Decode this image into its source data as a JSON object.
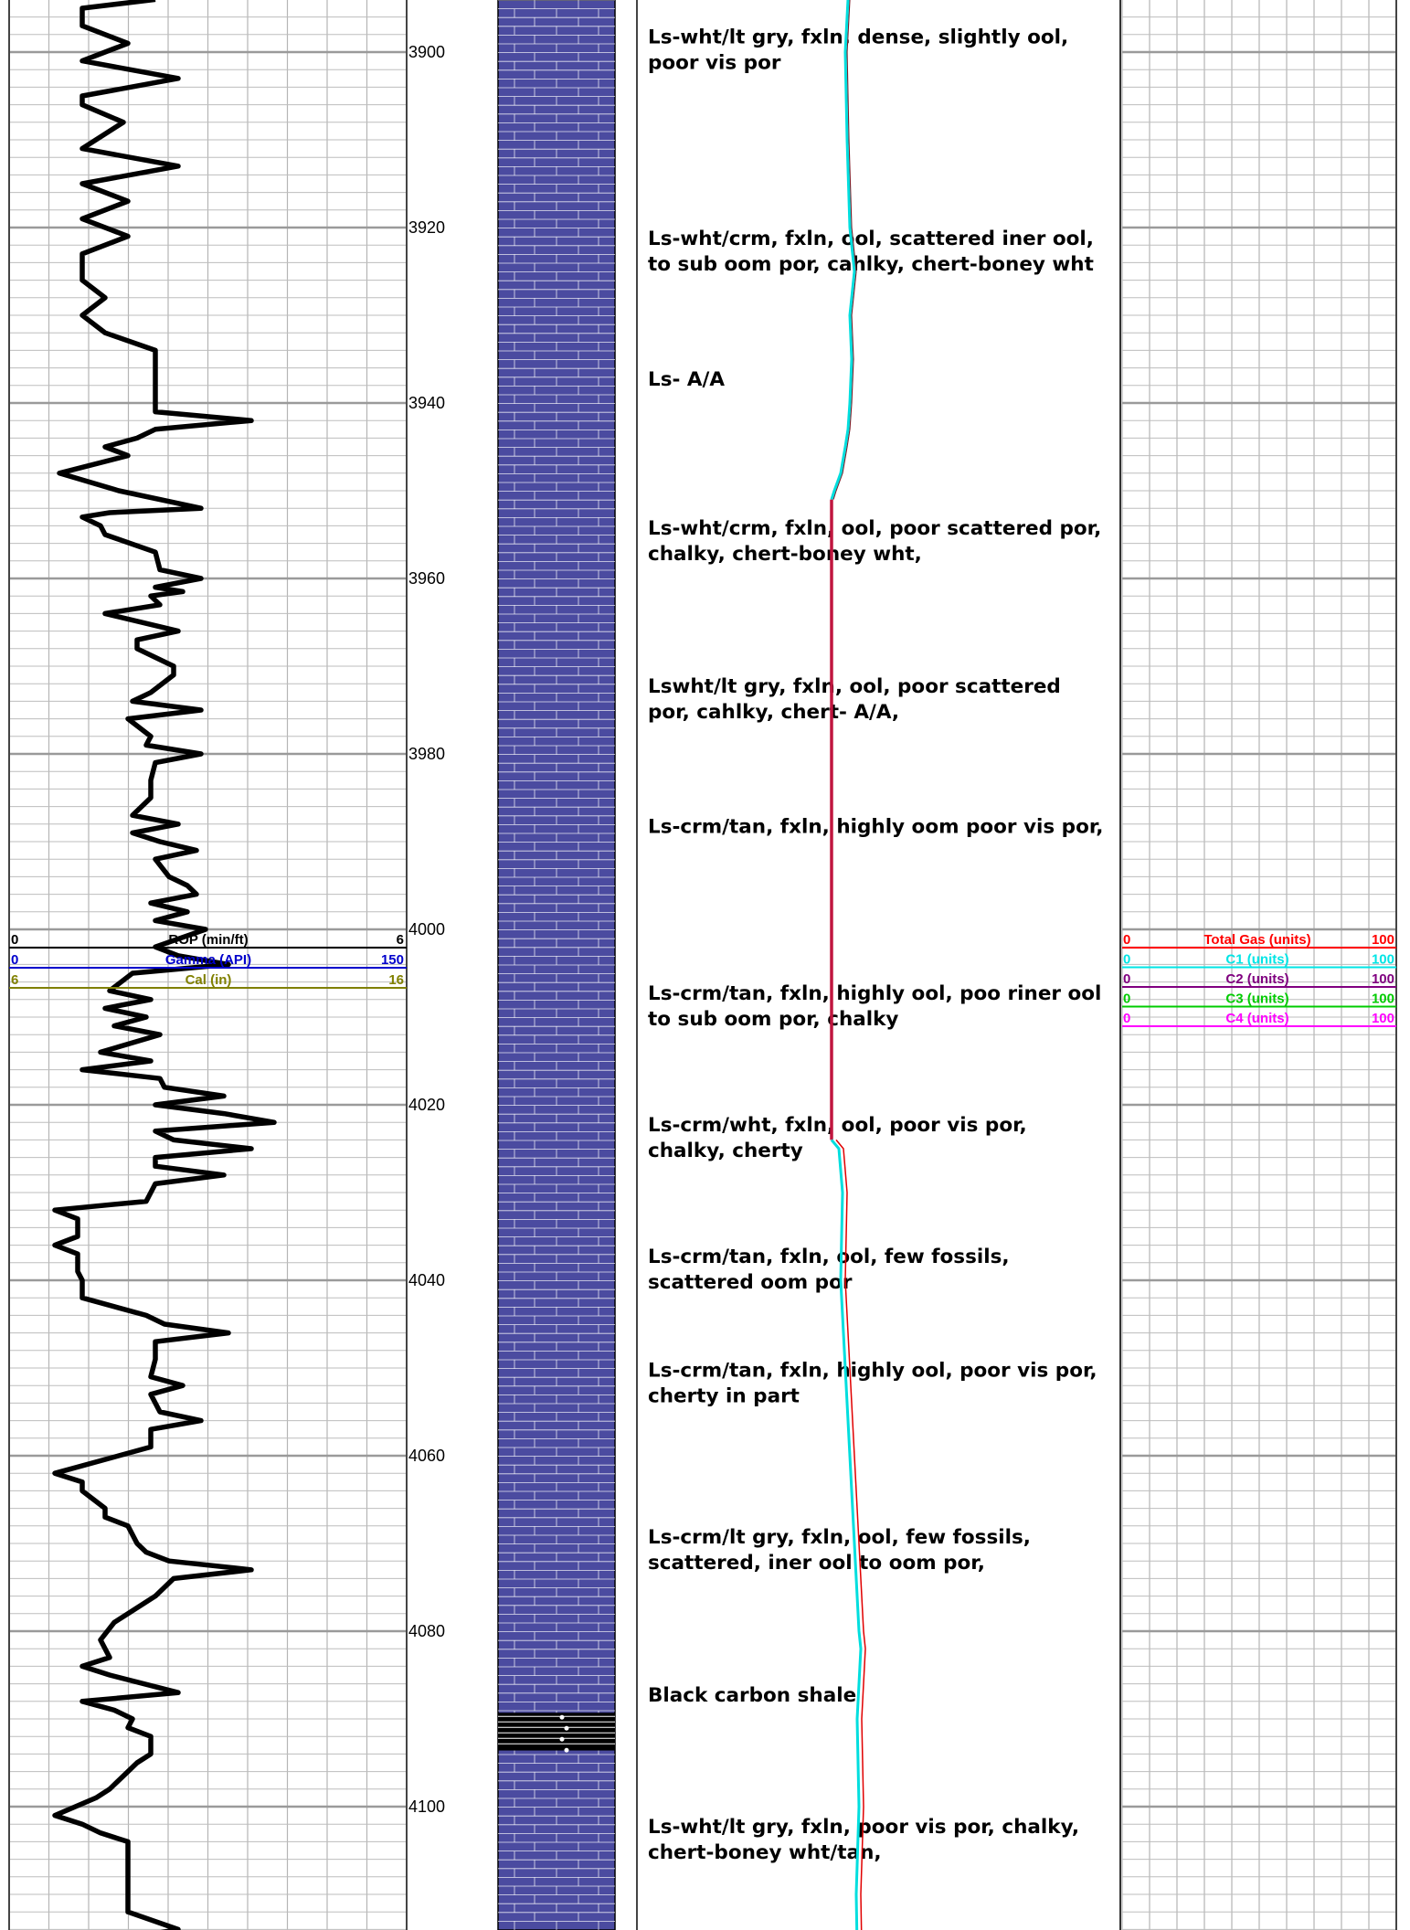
{
  "depths": [
    "3900",
    "3920",
    "3940",
    "3960",
    "3980",
    "4000",
    "4020",
    "4040",
    "4060",
    "4080",
    "4100"
  ],
  "left_track_header": [
    {
      "min": "0",
      "label": "ROP (min/ft)",
      "max": "6",
      "color": "#000000"
    },
    {
      "min": "0",
      "label": "Gamma (API)",
      "max": "150",
      "color": "#0000cc"
    },
    {
      "min": "6",
      "label": "Cal (in)",
      "max": "16",
      "color": "#808000"
    }
  ],
  "right_track_header": [
    {
      "min": "0",
      "label": "Total Gas (units)",
      "max": "100",
      "color": "#ff0000"
    },
    {
      "min": "0",
      "label": "C1 (units)",
      "max": "100",
      "color": "#00e5e5"
    },
    {
      "min": "0",
      "label": "C2 (units)",
      "max": "100",
      "color": "#800080"
    },
    {
      "min": "0",
      "label": "C3 (units)",
      "max": "100",
      "color": "#00cc00"
    },
    {
      "min": "0",
      "label": "C4 (units)",
      "max": "100",
      "color": "#ff00ff"
    }
  ],
  "descriptions": [
    {
      "depth": 3899,
      "lines": [
        "Ls-wht/lt gry, fxln, dense, slightly ool,",
        "poor vis por"
      ]
    },
    {
      "depth": 3922,
      "lines": [
        "Ls-wht/crm, fxln, ool, scattered iner ool,",
        "to sub oom por, cahlky, chert-boney wht"
      ]
    },
    {
      "depth": 3938,
      "lines": [
        "Ls- A/A"
      ]
    },
    {
      "depth": 3955,
      "lines": [
        "Ls-wht/crm, fxln, ool, poor scattered por,",
        "chalky, chert-boney wht,"
      ]
    },
    {
      "depth": 3973,
      "lines": [
        "Lswht/lt gry, fxln, ool, poor scattered",
        "por, cahlky, chert- A/A,"
      ]
    },
    {
      "depth": 3989,
      "lines": [
        "Ls-crm/tan, fxln, highly oom poor vis por,"
      ]
    },
    {
      "depth": 4008,
      "lines": [
        "Ls-crm/tan, fxln, highly ool, poo riner ool",
        "to sub oom por, chalky"
      ]
    },
    {
      "depth": 4023,
      "lines": [
        "Ls-crm/wht, fxln, ool, poor vis por,",
        "chalky, cherty"
      ]
    },
    {
      "depth": 4038,
      "lines": [
        "Ls-crm/tan, fxln, ool, few fossils,",
        "scattered oom por"
      ]
    },
    {
      "depth": 4051,
      "lines": [
        "Ls-crm/tan, fxln, highly ool, poor vis por,",
        "cherty in part"
      ]
    },
    {
      "depth": 4070,
      "lines": [
        "Ls-crm/lt gry, fxln, ool, few fossils,",
        "scattered, iner ool to oom por,"
      ]
    },
    {
      "depth": 4088,
      "lines": [
        "Black carbon shale"
      ]
    },
    {
      "depth": 4103,
      "lines": [
        "Ls-wht/lt gry, fxln, poor vis por, chalky,",
        "chert-boney wht/tan,"
      ]
    }
  ],
  "lithology": {
    "limestone_color": "#4b4ba0",
    "shale_color": "#000000",
    "shale_top": 4089.3,
    "shale_base": 4093.6
  },
  "curves": {
    "rop": [
      [
        3894,
        170
      ],
      [
        3895,
        90
      ],
      [
        3897,
        90
      ],
      [
        3899,
        140
      ],
      [
        3901,
        90
      ],
      [
        3903,
        195
      ],
      [
        3905,
        90
      ],
      [
        3906,
        90
      ],
      [
        3908,
        135
      ],
      [
        3911,
        90
      ],
      [
        3913,
        195
      ],
      [
        3915,
        90
      ],
      [
        3917,
        140
      ],
      [
        3919,
        90
      ],
      [
        3921,
        140
      ],
      [
        3923,
        90
      ],
      [
        3926,
        90
      ],
      [
        3928,
        115
      ],
      [
        3930,
        90
      ],
      [
        3932,
        115
      ],
      [
        3934,
        170
      ],
      [
        3941,
        170
      ],
      [
        3942,
        275
      ],
      [
        3943,
        170
      ],
      [
        3944,
        150
      ],
      [
        3945,
        115
      ],
      [
        3946,
        140
      ],
      [
        3948,
        65
      ],
      [
        3950,
        130
      ],
      [
        3952,
        220
      ],
      [
        3952.5,
        120
      ],
      [
        3953,
        90
      ],
      [
        3954,
        110
      ],
      [
        3955,
        115
      ],
      [
        3957,
        170
      ],
      [
        3959,
        175
      ],
      [
        3960,
        220
      ],
      [
        3961,
        170
      ],
      [
        3961.5,
        200
      ],
      [
        3962,
        165
      ],
      [
        3963,
        175
      ],
      [
        3964,
        115
      ],
      [
        3966,
        195
      ],
      [
        3967,
        150
      ],
      [
        3968,
        150
      ],
      [
        3970,
        190
      ],
      [
        3971,
        190
      ],
      [
        3973,
        165
      ],
      [
        3974,
        145
      ],
      [
        3975,
        220
      ],
      [
        3976,
        140
      ],
      [
        3978,
        165
      ],
      [
        3979,
        160
      ],
      [
        3980,
        220
      ],
      [
        3981,
        170
      ],
      [
        3983,
        165
      ],
      [
        3985,
        165
      ],
      [
        3987,
        145
      ],
      [
        3988,
        195
      ],
      [
        3989,
        145
      ],
      [
        3990,
        175
      ],
      [
        3991,
        215
      ],
      [
        3992,
        170
      ],
      [
        3994,
        185
      ],
      [
        3995,
        205
      ],
      [
        3996,
        215
      ],
      [
        3997,
        165
      ],
      [
        3998,
        205
      ],
      [
        3999,
        170
      ],
      [
        4000,
        225
      ],
      [
        4002,
        170
      ],
      [
        4003,
        195
      ],
      [
        4004,
        250
      ],
      [
        4005,
        145
      ],
      [
        4007,
        120
      ],
      [
        4008,
        165
      ],
      [
        4009,
        115
      ],
      [
        4010,
        160
      ],
      [
        4011,
        125
      ],
      [
        4012,
        175
      ],
      [
        4014,
        110
      ],
      [
        4015,
        165
      ],
      [
        4016,
        90
      ],
      [
        4017,
        175
      ],
      [
        4018,
        180
      ],
      [
        4019,
        245
      ],
      [
        4020,
        170
      ],
      [
        4021,
        245
      ],
      [
        4022,
        300
      ],
      [
        4023,
        170
      ],
      [
        4024,
        190
      ],
      [
        4025,
        275
      ],
      [
        4026,
        170
      ],
      [
        4027,
        170
      ],
      [
        4028,
        245
      ],
      [
        4029,
        170
      ],
      [
        4031,
        160
      ],
      [
        4032,
        60
      ],
      [
        4033,
        85
      ],
      [
        4035,
        85
      ],
      [
        4036,
        60
      ],
      [
        4037,
        85
      ],
      [
        4039,
        85
      ],
      [
        4040,
        90
      ],
      [
        4042,
        90
      ],
      [
        4044,
        160
      ],
      [
        4045,
        180
      ],
      [
        4046,
        250
      ],
      [
        4047,
        170
      ],
      [
        4049,
        170
      ],
      [
        4051,
        165
      ],
      [
        4052,
        200
      ],
      [
        4053,
        165
      ],
      [
        4055,
        175
      ],
      [
        4056,
        220
      ],
      [
        4057,
        165
      ],
      [
        4059,
        165
      ],
      [
        4062,
        60
      ],
      [
        4063,
        90
      ],
      [
        4064,
        90
      ],
      [
        4066,
        115
      ],
      [
        4067,
        115
      ],
      [
        4068,
        140
      ],
      [
        4070,
        150
      ],
      [
        4071,
        160
      ],
      [
        4072,
        185
      ],
      [
        4073,
        275
      ],
      [
        4074,
        190
      ],
      [
        4076,
        170
      ],
      [
        4078,
        140
      ],
      [
        4079,
        125
      ],
      [
        4081,
        110
      ],
      [
        4083,
        120
      ],
      [
        4084,
        90
      ],
      [
        4085,
        120
      ],
      [
        4087,
        195
      ],
      [
        4088,
        90
      ],
      [
        4089,
        125
      ],
      [
        4090,
        145
      ],
      [
        4091,
        140
      ],
      [
        4092,
        165
      ],
      [
        4094,
        165
      ],
      [
        4095,
        150
      ],
      [
        4096,
        140
      ],
      [
        4098,
        120
      ],
      [
        4099,
        105
      ],
      [
        4101,
        60
      ],
      [
        4102,
        90
      ],
      [
        4103,
        110
      ],
      [
        4104,
        140
      ],
      [
        4106,
        140
      ],
      [
        4108,
        140
      ],
      [
        4110,
        140
      ],
      [
        4112,
        140
      ],
      [
        4114,
        195
      ],
      [
        4115,
        140
      ]
    ],
    "c1": [
      [
        3894,
        928
      ],
      [
        3900,
        925
      ],
      [
        3910,
        927
      ],
      [
        3920,
        930
      ],
      [
        3925,
        935
      ],
      [
        3930,
        930
      ],
      [
        3935,
        932
      ],
      [
        3940,
        930
      ],
      [
        3943,
        928
      ],
      [
        3945,
        925
      ],
      [
        3948,
        920
      ],
      [
        3950,
        913
      ],
      [
        3951,
        910
      ]
    ],
    "gas_flat": [
      [
        3951,
        910
      ],
      [
        4024,
        910
      ]
    ],
    "c1_lower": [
      [
        4024,
        910
      ],
      [
        4025,
        918
      ],
      [
        4030,
        922
      ],
      [
        4040,
        920
      ],
      [
        4050,
        925
      ],
      [
        4060,
        930
      ],
      [
        4070,
        935
      ],
      [
        4080,
        940
      ],
      [
        4082,
        942
      ],
      [
        4090,
        938
      ],
      [
        4100,
        940
      ],
      [
        4110,
        937
      ],
      [
        4116,
        938
      ]
    ]
  }
}
